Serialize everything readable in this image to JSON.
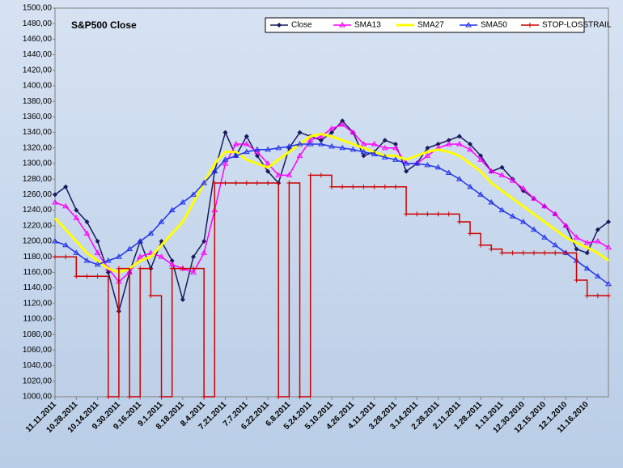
{
  "chart_data": {
    "type": "line",
    "title": "S&P500 Close",
    "categories": [
      "11.11.2011",
      null,
      "10.28.2011",
      null,
      "10.14.2011",
      null,
      "9.30.2011",
      null,
      "9.16.2011",
      null,
      "9.1.2011",
      null,
      "8.18.2011",
      null,
      "8.4.2011",
      null,
      "7.21.2011",
      null,
      "7.7.2011",
      null,
      "6.22.2011",
      null,
      "6.8.2011",
      null,
      "5.24.2011",
      null,
      "5.10.2011",
      null,
      "4.26.2011",
      null,
      "4.11.2011",
      null,
      "3.28.2011",
      null,
      "3.14.2011",
      null,
      "2.28.2011",
      null,
      "2.11.2011",
      null,
      "1.28.2011",
      null,
      "1.13.2011",
      null,
      "12.30.2010",
      null,
      "12.15.2010",
      null,
      "12.1.2010",
      null,
      "11.16.2010",
      null,
      null
    ],
    "series": [
      {
        "name": "Close",
        "color": "#1a1a5e",
        "marker": "diamond",
        "values": [
          1260,
          1270,
          1240,
          1225,
          1200,
          1160,
          1110,
          1160,
          1200,
          1165,
          1200,
          1175,
          1125,
          1180,
          1200,
          1290,
          1340,
          1310,
          1335,
          1310,
          1290,
          1275,
          1320,
          1340,
          1335,
          1330,
          1340,
          1355,
          1340,
          1310,
          1315,
          1330,
          1325,
          1290,
          1300,
          1320,
          1325,
          1330,
          1335,
          1325,
          1310,
          1290,
          1295,
          1280,
          1265,
          1255,
          1245,
          1235,
          1220,
          1190,
          1185,
          1215,
          1225
        ]
      },
      {
        "name": "SMA13",
        "color": "#ff00ff",
        "marker": "triangle",
        "values": [
          1250,
          1245,
          1230,
          1210,
          1185,
          1165,
          1148,
          1160,
          1180,
          1185,
          1180,
          1170,
          1165,
          1160,
          1185,
          1240,
          1300,
          1325,
          1325,
          1315,
          1300,
          1285,
          1285,
          1310,
          1330,
          1335,
          1345,
          1350,
          1340,
          1325,
          1325,
          1320,
          1320,
          1300,
          1300,
          1310,
          1320,
          1325,
          1325,
          1318,
          1305,
          1290,
          1285,
          1278,
          1268,
          1255,
          1245,
          1235,
          1220,
          1205,
          1198,
          1200,
          1192
        ]
      },
      {
        "name": "SMA27",
        "color": "#ffff00",
        "marker": "none",
        "values": [
          1230,
          1215,
          1200,
          1185,
          1175,
          1165,
          1160,
          1165,
          1175,
          1180,
          1195,
          1210,
          1225,
          1250,
          1275,
          1300,
          1315,
          1315,
          1305,
          1300,
          1295,
          1305,
          1315,
          1325,
          1335,
          1338,
          1335,
          1330,
          1325,
          1320,
          1315,
          1310,
          1310,
          1305,
          1310,
          1315,
          1318,
          1315,
          1310,
          1300,
          1290,
          1275,
          1265,
          1255,
          1245,
          1235,
          1225,
          1215,
          1205,
          1198,
          1192,
          1185,
          1175
        ]
      },
      {
        "name": "SMA50",
        "color": "#2233ee",
        "marker": "triangle",
        "values": [
          1200,
          1195,
          1185,
          1175,
          1170,
          1175,
          1180,
          1190,
          1200,
          1210,
          1225,
          1240,
          1250,
          1260,
          1275,
          1290,
          1305,
          1310,
          1315,
          1318,
          1318,
          1320,
          1322,
          1325,
          1325,
          1325,
          1322,
          1320,
          1318,
          1315,
          1312,
          1308,
          1305,
          1300,
          1300,
          1298,
          1295,
          1288,
          1280,
          1270,
          1260,
          1250,
          1240,
          1232,
          1225,
          1215,
          1205,
          1195,
          1185,
          1175,
          1165,
          1155,
          1145
        ]
      },
      {
        "name": "STOP-LOSSTRAIL",
        "color": "#cc0000",
        "marker": "plus",
        "step": true,
        "values": [
          1180,
          1180,
          1155,
          1155,
          1155,
          1000,
          1165,
          1000,
          1165,
          1130,
          1000,
          1165,
          1165,
          1165,
          1000,
          1275,
          1275,
          1275,
          1275,
          1275,
          1275,
          1000,
          1275,
          1000,
          1285,
          1285,
          1270,
          1270,
          1270,
          1270,
          1270,
          1270,
          1270,
          1235,
          1235,
          1235,
          1235,
          1235,
          1225,
          1210,
          1195,
          1190,
          1185,
          1185,
          1185,
          1185,
          1185,
          1185,
          1185,
          1150,
          1130,
          1130,
          1130
        ]
      }
    ],
    "ylim": [
      1000,
      1500
    ],
    "yticks": [
      {
        "value": 1000,
        "label": "1000,00"
      },
      {
        "value": 1020,
        "label": "1020,00"
      },
      {
        "value": 1040,
        "label": "1040,00"
      },
      {
        "value": 1060,
        "label": "1060,00"
      },
      {
        "value": 1080,
        "label": "1080,00"
      },
      {
        "value": 1100,
        "label": "1100,00"
      },
      {
        "value": 1120,
        "label": "1120,00"
      },
      {
        "value": 1140,
        "label": "1140,00"
      },
      {
        "value": 1160,
        "label": "1160,00"
      },
      {
        "value": 1180,
        "label": "1180,00"
      },
      {
        "value": 1200,
        "label": "1200,00"
      },
      {
        "value": 1220,
        "label": "1220,00"
      },
      {
        "value": 1240,
        "label": "1240,00"
      },
      {
        "value": 1260,
        "label": "1260,00"
      },
      {
        "value": 1280,
        "label": "1280,00"
      },
      {
        "value": 1300,
        "label": "1300,00"
      },
      {
        "value": 1320,
        "label": "1320,00"
      },
      {
        "value": 1340,
        "label": "1340,00"
      },
      {
        "value": 1360,
        "label": "1360,00"
      },
      {
        "value": 1380,
        "label": "1380,00"
      },
      {
        "value": 1400,
        "label": "1400,00"
      },
      {
        "value": 1420,
        "label": "1420,00"
      },
      {
        "value": 1440,
        "label": "1440,00"
      },
      {
        "value": 1460,
        "label": "1460,00"
      },
      {
        "value": 1480,
        "label": "1480,00"
      },
      {
        "value": 1500,
        "label": "1500,00"
      }
    ],
    "grid": false,
    "legend": "top-right"
  }
}
